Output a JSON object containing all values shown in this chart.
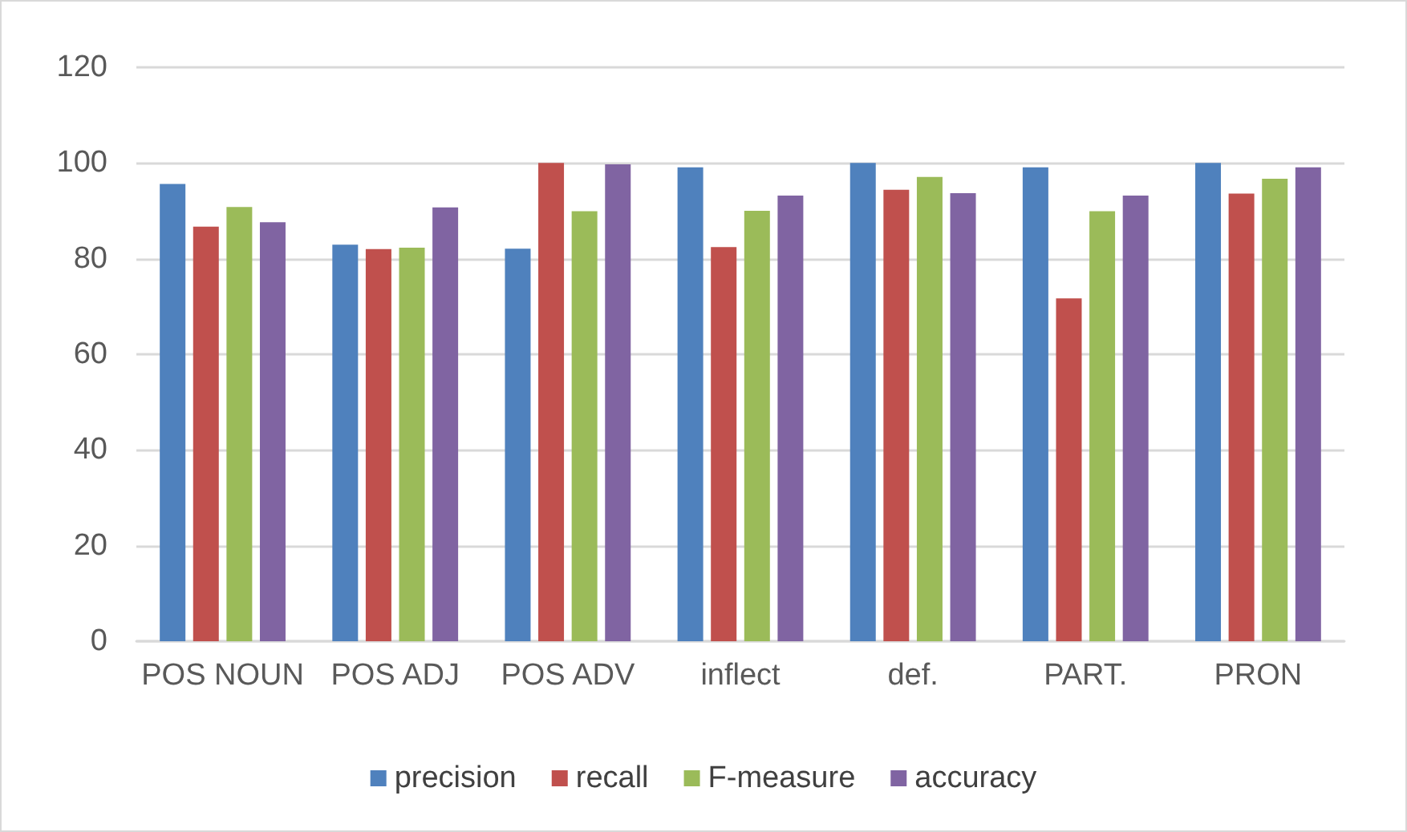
{
  "chart_data": {
    "type": "bar",
    "categories": [
      "POS NOUN",
      "POS ADJ",
      "POS ADV",
      "inflect",
      "def.",
      "PART.",
      "PRON"
    ],
    "series": [
      {
        "name": "precision",
        "color": "#4f81bd",
        "values": [
          95.6,
          82.9,
          82.1,
          99.1,
          100,
          99.1,
          100
        ]
      },
      {
        "name": "recall",
        "color": "#c0504d",
        "values": [
          86.7,
          82,
          100,
          82.4,
          94.4,
          71.7,
          93.6
        ]
      },
      {
        "name": "F-measure",
        "color": "#9bbb59",
        "values": [
          90.8,
          82.3,
          89.9,
          90,
          97.1,
          89.9,
          96.7
        ]
      },
      {
        "name": "accuracy",
        "color": "#8064a2",
        "values": [
          87.6,
          90.7,
          99.7,
          93.2,
          93.7,
          93.2,
          99.1
        ]
      }
    ],
    "ylim": [
      0,
      120
    ],
    "yticks": [
      0,
      20,
      40,
      60,
      80,
      100,
      120
    ],
    "grid": "y",
    "legend": "bottom"
  }
}
